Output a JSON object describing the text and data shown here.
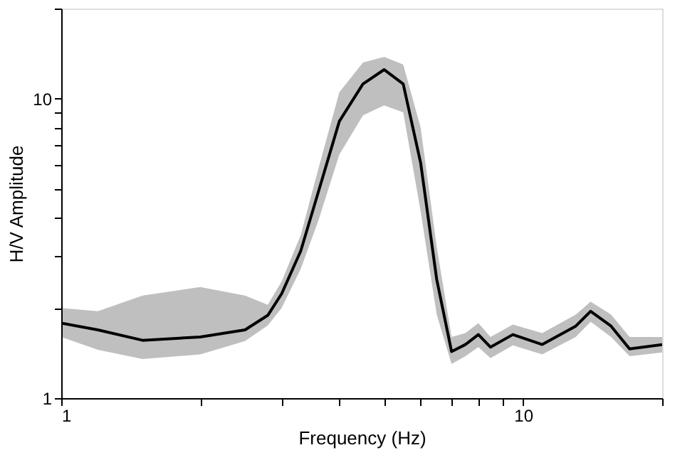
{
  "chart_data": {
    "type": "line",
    "xlabel": "Frequency (Hz)",
    "ylabel": "H/V Amplitude",
    "log": "xy",
    "grid": false,
    "marker": "none",
    "line_style": "solid",
    "xlim": [
      1,
      20
    ],
    "ylim": [
      1,
      20
    ],
    "xticks": [
      1,
      {
        "value": 2,
        "label": null
      },
      {
        "value": 3,
        "label": null
      },
      {
        "value": 4,
        "label": null
      },
      {
        "value": 5,
        "label": null
      },
      {
        "value": 6,
        "label": null
      },
      {
        "value": 7,
        "label": null
      },
      {
        "value": 8,
        "label": null
      },
      {
        "value": 9,
        "label": null
      },
      10,
      {
        "value": 20,
        "label": null
      }
    ],
    "yticks": [
      1,
      {
        "value": 2,
        "label": null
      },
      {
        "value": 3,
        "label": null
      },
      {
        "value": 4,
        "label": null
      },
      {
        "value": 5,
        "label": null
      },
      {
        "value": 6,
        "label": null
      },
      {
        "value": 7,
        "label": null
      },
      {
        "value": 8,
        "label": null
      },
      {
        "value": 9,
        "label": null
      },
      10,
      {
        "value": 20,
        "label": null
      }
    ],
    "series": [
      {
        "color": "#000000",
        "x": [
          1,
          1.2,
          1.5,
          2,
          2.5,
          2.8,
          3,
          3.3,
          3.6,
          4,
          4.5,
          5,
          5.5,
          6,
          6.5,
          7,
          7.5,
          8,
          8.5,
          9.5,
          11,
          13,
          14,
          15.5,
          17,
          20
        ],
        "values": [
          1.78,
          1.69,
          1.56,
          1.6,
          1.69,
          1.89,
          2.23,
          3.1,
          4.86,
          8.4,
          11.2,
          12.5,
          11.2,
          6.1,
          2.49,
          1.43,
          1.51,
          1.63,
          1.48,
          1.63,
          1.51,
          1.74,
          1.95,
          1.74,
          1.46,
          1.51
        ],
        "lower": [
          1.6,
          1.45,
          1.35,
          1.4,
          1.55,
          1.75,
          2.0,
          2.7,
          3.9,
          6.5,
          8.8,
          9.5,
          9.0,
          4.2,
          1.9,
          1.3,
          1.38,
          1.48,
          1.36,
          1.5,
          1.4,
          1.6,
          1.8,
          1.6,
          1.38,
          1.42
        ],
        "upper": [
          2.0,
          1.95,
          2.2,
          2.35,
          2.2,
          2.05,
          2.45,
          3.5,
          5.8,
          10.5,
          13.2,
          13.8,
          13.0,
          8.0,
          3.2,
          1.6,
          1.65,
          1.78,
          1.6,
          1.76,
          1.65,
          1.9,
          2.1,
          1.9,
          1.6,
          1.6
        ]
      }
    ]
  }
}
